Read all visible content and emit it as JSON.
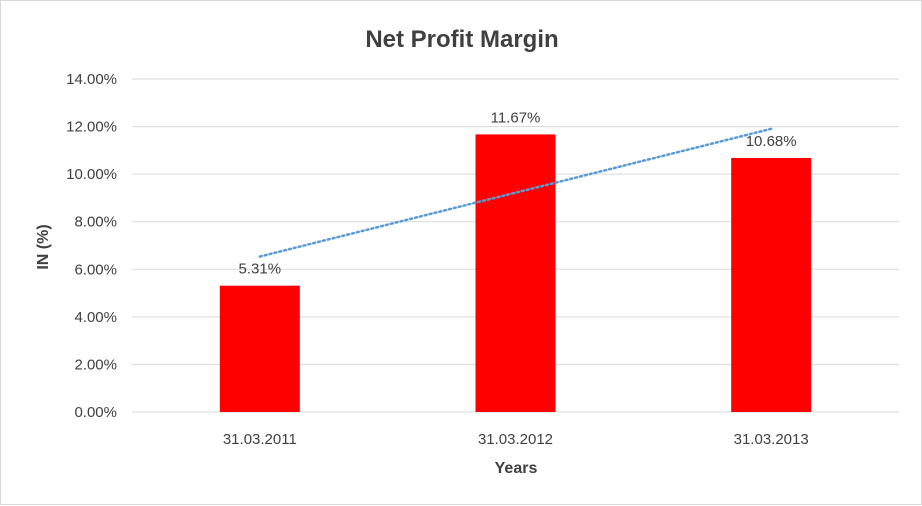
{
  "chart_data": {
    "type": "bar",
    "title": "Net Profit Margin",
    "xlabel": "Years",
    "ylabel": "IN (%)",
    "categories": [
      "31.03.2011",
      "31.03.2012",
      "31.03.2013"
    ],
    "values": [
      5.31,
      11.67,
      10.68
    ],
    "data_labels": [
      "5.31%",
      "11.67%",
      "10.68%"
    ],
    "ylim": [
      0,
      14
    ],
    "yticks": [
      0,
      2,
      4,
      6,
      8,
      10,
      12,
      14
    ],
    "ytick_labels": [
      "0.00%",
      "2.00%",
      "4.00%",
      "6.00%",
      "8.00%",
      "10.00%",
      "12.00%",
      "14.00%"
    ],
    "grid": true,
    "legend": "none",
    "bar_color": "#ff0000",
    "trendline": {
      "type": "linear",
      "style": "dotted",
      "color": "#5b9bd5"
    }
  }
}
